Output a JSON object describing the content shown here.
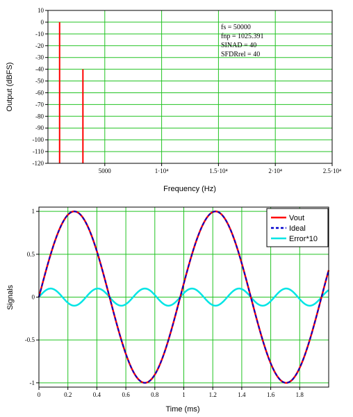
{
  "chart_data": [
    {
      "type": "bar",
      "xlabel": "Frequency (Hz)",
      "ylabel": "Output (dBFS)",
      "xlim": [
        0,
        25000
      ],
      "ylim": [
        -120,
        10
      ],
      "xticks": [
        {
          "value": 5000,
          "label": "5000"
        },
        {
          "value": 10000,
          "label": "1·10⁴"
        },
        {
          "value": 15000,
          "label": "1.5·10⁴"
        },
        {
          "value": 20000,
          "label": "2·10⁴"
        },
        {
          "value": 25000,
          "label": "2.5·10⁴"
        }
      ],
      "yticks": [
        10,
        0,
        -10,
        -20,
        -30,
        -40,
        -50,
        -60,
        -70,
        -80,
        -90,
        -100,
        -110,
        -120
      ],
      "grid": true,
      "series": [
        {
          "color": "#ff0000",
          "x": [
            1025.391,
            3076.173
          ],
          "y": [
            0,
            -40
          ]
        }
      ],
      "annotations": [
        "fs = 50000",
        "fnp = 1025.391",
        "SINAD = 40",
        "SFDRrel = 40"
      ]
    },
    {
      "type": "line",
      "xlabel": "Time (ms)",
      "ylabel": "Signals",
      "xlim": [
        0,
        2
      ],
      "ylim": [
        -1.05,
        1.05
      ],
      "xticks": [
        0,
        0.2,
        0.4,
        0.6,
        0.8,
        1,
        1.2,
        1.4,
        1.6,
        1.8
      ],
      "yticks": [
        1,
        0.5,
        0,
        -0.5,
        -1
      ],
      "grid": true,
      "legend_position": "top-right",
      "series": [
        {
          "name": "Vout",
          "color": "#ff0000",
          "style": "solid",
          "frequency_hz": 1025.391,
          "amplitude": 1.0
        },
        {
          "name": "Ideal",
          "color": "#0000cc",
          "style": "dashed",
          "frequency_hz": 1025.391,
          "amplitude": 1.0
        },
        {
          "name": "Error*10",
          "color": "#00e5e5",
          "style": "solid",
          "frequency_hz": 3076.173,
          "amplitude": 0.1
        }
      ]
    }
  ]
}
